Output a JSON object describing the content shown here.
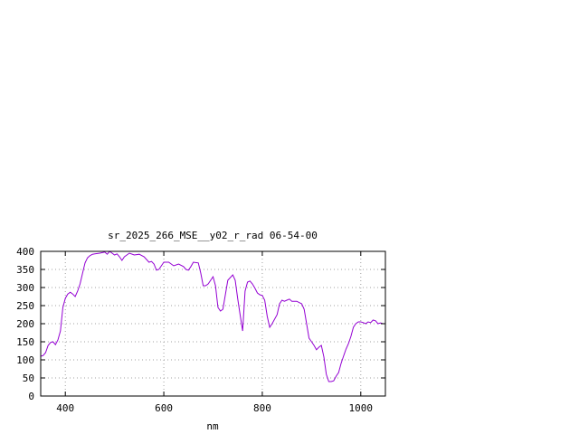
{
  "chart_data": {
    "type": "line",
    "title": "sr_2025_266_MSE__y02_r_rad 06-54-00",
    "xlabel": "nm",
    "ylabel": "",
    "xlim": [
      350,
      1050
    ],
    "ylim": [
      0,
      400
    ],
    "x_ticks": [
      400,
      600,
      800,
      1000
    ],
    "y_ticks": [
      0,
      50,
      100,
      150,
      200,
      250,
      300,
      350,
      400
    ],
    "grid": true,
    "line_color": "#9400d3",
    "series": [
      {
        "x": [
          350,
          355,
          360,
          365,
          370,
          375,
          380,
          385,
          390,
          395,
          400,
          405,
          410,
          415,
          420,
          425,
          430,
          435,
          440,
          445,
          450,
          455,
          460,
          470,
          480,
          485,
          490,
          495,
          500,
          505,
          510,
          515,
          520,
          530,
          540,
          550,
          560,
          570,
          575,
          580,
          585,
          590,
          600,
          610,
          620,
          630,
          640,
          645,
          650,
          655,
          660,
          670,
          675,
          680,
          685,
          690,
          700,
          705,
          710,
          715,
          720,
          730,
          740,
          745,
          750,
          755,
          760,
          765,
          770,
          775,
          780,
          785,
          790,
          795,
          800,
          805,
          810,
          815,
          820,
          830,
          835,
          840,
          845,
          850,
          855,
          860,
          870,
          880,
          885,
          890,
          895,
          900,
          905,
          910,
          915,
          920,
          925,
          930,
          935,
          940,
          945,
          950,
          955,
          960,
          965,
          970,
          975,
          980,
          985,
          990,
          995,
          1000,
          1005,
          1010,
          1015,
          1020,
          1025,
          1030,
          1035,
          1040,
          1045,
          1050
        ],
        "y": [
          110,
          112,
          120,
          140,
          148,
          150,
          142,
          155,
          180,
          245,
          270,
          282,
          287,
          282,
          275,
          290,
          310,
          340,
          368,
          382,
          388,
          392,
          393,
          395,
          398,
          392,
          400,
          395,
          390,
          393,
          385,
          375,
          385,
          395,
          390,
          392,
          385,
          370,
          372,
          365,
          348,
          350,
          370,
          370,
          360,
          365,
          358,
          350,
          348,
          358,
          370,
          368,
          340,
          305,
          305,
          310,
          330,
          305,
          245,
          235,
          240,
          320,
          335,
          320,
          270,
          225,
          180,
          290,
          315,
          318,
          310,
          298,
          285,
          280,
          278,
          265,
          220,
          190,
          200,
          225,
          255,
          265,
          262,
          265,
          268,
          262,
          262,
          255,
          240,
          200,
          160,
          150,
          140,
          128,
          135,
          140,
          108,
          60,
          40,
          40,
          42,
          55,
          65,
          90,
          110,
          130,
          145,
          165,
          190,
          200,
          205,
          205,
          203,
          200,
          205,
          203,
          210,
          208,
          200,
          202,
          200,
          200
        ]
      }
    ]
  }
}
